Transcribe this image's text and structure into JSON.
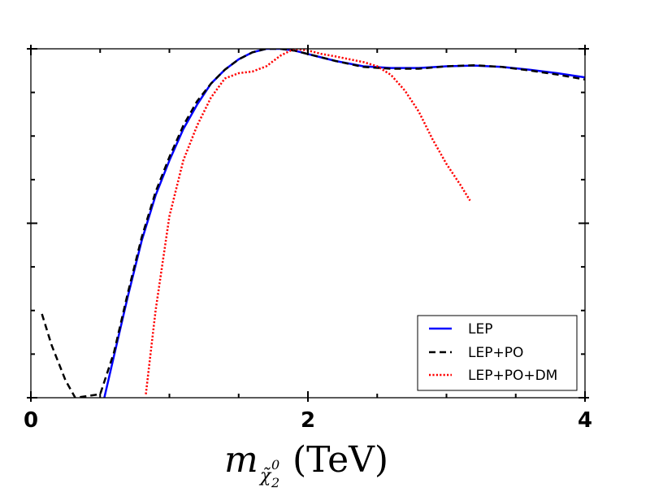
{
  "chart_data": {
    "type": "line",
    "title": "",
    "xlabel": {
      "symbol": "m",
      "subscript": "χ̃",
      "subscript_index": "2",
      "subscript_sup": "0",
      "unit": "(TeV)"
    },
    "ylabel": "",
    "xlim": [
      0,
      4
    ],
    "ylim": [
      0,
      1
    ],
    "x_ticks": [
      0,
      2,
      4
    ],
    "x_tick_labels": [
      "0",
      "2",
      "4"
    ],
    "y_ticks_labeled": false,
    "grid": false,
    "legend_position": "lower-right",
    "series": [
      {
        "name": "LEP",
        "color": "#0000ff",
        "style": "solid",
        "x": [
          0.53,
          0.6,
          0.7,
          0.8,
          0.9,
          1.0,
          1.1,
          1.2,
          1.3,
          1.4,
          1.5,
          1.6,
          1.7,
          1.8,
          1.9,
          2.0,
          2.2,
          2.4,
          2.6,
          2.8,
          3.0,
          3.2,
          3.4,
          3.6,
          3.8,
          4.0
        ],
        "y": [
          0.0,
          0.12,
          0.29,
          0.45,
          0.58,
          0.68,
          0.77,
          0.84,
          0.9,
          0.94,
          0.97,
          0.99,
          1.0,
          1.0,
          0.995,
          0.985,
          0.965,
          0.95,
          0.945,
          0.945,
          0.95,
          0.952,
          0.948,
          0.94,
          0.93,
          0.918
        ]
      },
      {
        "name": "LEP+PO",
        "color": "#000000",
        "style": "dashed",
        "x": [
          0.08,
          0.15,
          0.25,
          0.32,
          0.5,
          0.6,
          0.7,
          0.8,
          0.9,
          1.0,
          1.1,
          1.2,
          1.3,
          1.4,
          1.5,
          1.6,
          1.7,
          1.8,
          1.9,
          2.0,
          2.2,
          2.4,
          2.6,
          2.8,
          3.0,
          3.2,
          3.4,
          3.6,
          3.8,
          4.0
        ],
        "y": [
          0.24,
          0.15,
          0.05,
          0.0,
          0.01,
          0.13,
          0.3,
          0.46,
          0.59,
          0.69,
          0.78,
          0.85,
          0.9,
          0.94,
          0.97,
          0.99,
          1.0,
          1.0,
          0.995,
          0.985,
          0.965,
          0.948,
          0.943,
          0.943,
          0.95,
          0.953,
          0.948,
          0.938,
          0.926,
          0.912
        ]
      },
      {
        "name": "LEP+PO+DM",
        "color": "#ff0000",
        "style": "dotted",
        "x": [
          0.83,
          0.9,
          1.0,
          1.1,
          1.2,
          1.3,
          1.4,
          1.5,
          1.6,
          1.7,
          1.8,
          1.9,
          2.0,
          2.1,
          2.2,
          2.3,
          2.4,
          2.5,
          2.6,
          2.7,
          2.8,
          2.9,
          3.0,
          3.1,
          3.17
        ],
        "y": [
          0.01,
          0.25,
          0.52,
          0.68,
          0.78,
          0.86,
          0.915,
          0.93,
          0.935,
          0.95,
          0.98,
          1.0,
          0.995,
          0.985,
          0.978,
          0.97,
          0.962,
          0.95,
          0.925,
          0.88,
          0.82,
          0.74,
          0.67,
          0.61,
          0.565
        ]
      }
    ]
  }
}
